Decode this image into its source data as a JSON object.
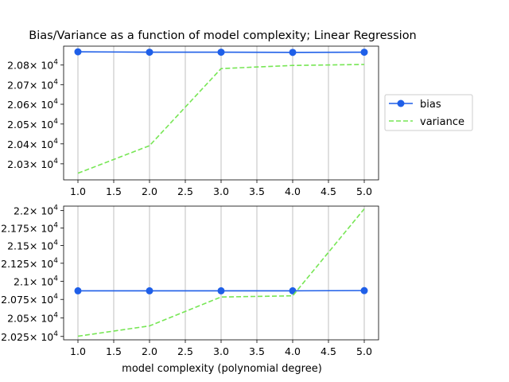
{
  "chart_data": [
    {
      "type": "line",
      "title": "Bias/Variance as a function of model complexity; Linear Regression",
      "xlabel": "",
      "ylabel": "",
      "x": [
        1.0,
        2.0,
        3.0,
        4.0,
        5.0
      ],
      "xlim": [
        0.8,
        5.2
      ],
      "ylim": [
        20220,
        20897
      ],
      "yscale": "log",
      "grid": "x",
      "x_ticks": [
        1.0,
        1.5,
        2.0,
        2.5,
        3.0,
        3.5,
        4.0,
        4.5,
        5.0
      ],
      "x_tick_labels": [
        "1.0",
        "1.5",
        "2.0",
        "2.5",
        "3.0",
        "3.5",
        "4.0",
        "4.5",
        "5.0"
      ],
      "y_ticks": [
        20300,
        20400,
        20500,
        20600,
        20700,
        20800
      ],
      "y_tick_mantissas": [
        "2.03",
        "2.04",
        "2.05",
        "2.06",
        "2.07",
        "2.08"
      ],
      "y_tick_base": "× 10",
      "y_tick_exponent": "4",
      "legend": "right-outside",
      "series": [
        {
          "name": "bias",
          "values": [
            20868,
            20866,
            20866,
            20865,
            20866
          ],
          "color": "#1f5fe8",
          "style": "solid",
          "marker": "circle"
        },
        {
          "name": "variance",
          "values": [
            20253,
            20391,
            20782,
            20798,
            20803
          ],
          "color": "#77e655",
          "style": "dashed",
          "marker": "none"
        }
      ]
    },
    {
      "type": "line",
      "title": "",
      "xlabel": "model complexity (polynomial degree)",
      "ylabel": "",
      "x": [
        1.0,
        2.0,
        3.0,
        4.0,
        5.0
      ],
      "xlim": [
        0.8,
        5.2
      ],
      "ylim": [
        20205,
        22065
      ],
      "yscale": "log",
      "grid": "x",
      "x_ticks": [
        1.0,
        1.5,
        2.0,
        2.5,
        3.0,
        3.5,
        4.0,
        4.5,
        5.0
      ],
      "x_tick_labels": [
        "1.0",
        "1.5",
        "2.0",
        "2.5",
        "3.0",
        "3.5",
        "4.0",
        "4.5",
        "5.0"
      ],
      "y_ticks": [
        20250,
        20500,
        20750,
        21000,
        21250,
        21500,
        21750,
        22000
      ],
      "y_tick_mantissas": [
        "2.025",
        "2.05",
        "2.075",
        "2.1",
        "2.125",
        "2.15",
        "2.175",
        "2.2"
      ],
      "y_tick_base": "× 10",
      "y_tick_exponent": "4",
      "series": [
        {
          "name": "bias",
          "values": [
            20868,
            20868,
            20868,
            20868,
            20871
          ],
          "color": "#1f5fe8",
          "style": "solid",
          "marker": "circle"
        },
        {
          "name": "variance",
          "values": [
            20253,
            20391,
            20783,
            20799,
            22025
          ],
          "color": "#77e655",
          "style": "dashed",
          "marker": "none"
        }
      ]
    }
  ]
}
